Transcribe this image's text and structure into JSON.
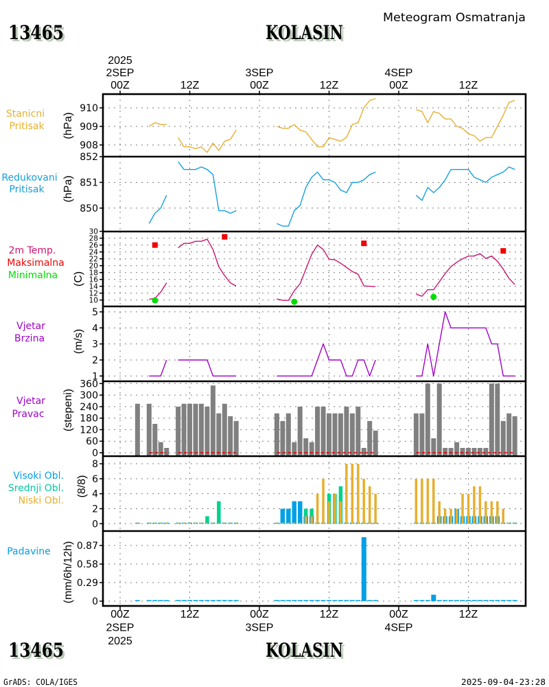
{
  "header": {
    "station_id": "13465",
    "station_name": "KOLASIN",
    "title": "Meteogram Osmatranja"
  },
  "footer": {
    "station_id": "13465",
    "station_name": "KOLASIN",
    "software": "GrADS: COLA/IGES",
    "timestamp": "2025-09-04-23:28"
  },
  "chart_data": {
    "type": "meteogram",
    "title": "Meteogram Osmatranja",
    "station": "13465 KOLASIN",
    "x_axis": {
      "reference": "2025 2SEP 00Z",
      "unit": "hours",
      "xlim": [
        -2.96,
        69.87
      ],
      "grid": true,
      "ticks": [
        {
          "hour": 0,
          "top": [
            "2025",
            "2SEP",
            "00Z"
          ],
          "bottom": [
            "00Z",
            "2SEP",
            "2025"
          ]
        },
        {
          "hour": 12,
          "top": [
            "12Z"
          ],
          "bottom": [
            "12Z"
          ]
        },
        {
          "hour": 24,
          "top": [
            "3SEP",
            "00Z"
          ],
          "bottom": [
            "00Z",
            "3SEP"
          ]
        },
        {
          "hour": 36,
          "top": [
            "12Z"
          ],
          "bottom": [
            "12Z"
          ]
        },
        {
          "hour": 48,
          "top": [
            "4SEP",
            "00Z"
          ],
          "bottom": [
            "00Z",
            "4SEP"
          ]
        },
        {
          "hour": 60,
          "top": [
            "12Z"
          ],
          "bottom": [
            "12Z"
          ]
        }
      ]
    },
    "hours": [
      3,
      5,
      6,
      7,
      8,
      10,
      11,
      12,
      13,
      14,
      15,
      16,
      17,
      18,
      19,
      20,
      27,
      28,
      29,
      30,
      31,
      32,
      33,
      34,
      35,
      36,
      37,
      38,
      39,
      40,
      41,
      42,
      43,
      44,
      51,
      52,
      53,
      54,
      55,
      56,
      57,
      58,
      59,
      60,
      61,
      62,
      63,
      64,
      65,
      66,
      67,
      68
    ],
    "panels": [
      {
        "id": "station-pressure",
        "labels": [
          {
            "text": "Stanicni",
            "color": "#e6af2e"
          },
          {
            "text": "Pritisak",
            "color": "#e6af2e"
          }
        ],
        "ylabel": "(hPa)",
        "ylim": [
          907.37,
          910.74
        ],
        "ticks": [
          908,
          909,
          910
        ],
        "tick_labels": [
          "908",
          "909",
          "910"
        ],
        "grid": true,
        "series": [
          {
            "id": "station-pressure",
            "name": "Stanicni Pritisak",
            "type": "line",
            "color": "#e6af2e",
            "values": [
              null,
              909.0,
              909.2,
              909.1,
              909.1,
              908.4,
              907.9,
              907.9,
              907.8,
              907.9,
              907.6,
              908.1,
              907.7,
              908.2,
              908.3,
              908.8,
              909.0,
              908.9,
              908.9,
              909.1,
              908.8,
              908.7,
              908.3,
              907.9,
              907.9,
              908.4,
              908.3,
              908.2,
              908.4,
              909.1,
              909.2,
              910.0,
              910.4,
              910.5,
              909.9,
              909.8,
              909.2,
              909.8,
              909.7,
              909.4,
              909.4,
              909.0,
              908.9,
              908.6,
              908.5,
              908.2,
              908.4,
              908.4,
              909.0,
              909.6,
              910.3,
              910.4
            ]
          }
        ]
      },
      {
        "id": "reduced-pressure",
        "labels": [
          {
            "text": "Redukovani",
            "color": "#14a0dc"
          },
          {
            "text": "Pritisak",
            "color": "#14a0dc"
          }
        ],
        "ylabel": "(hPa)",
        "ylim": [
          849.09,
          852.0
        ],
        "ticks": [
          850,
          851,
          852
        ],
        "tick_labels": [
          "850",
          "851",
          "852"
        ],
        "grid": true,
        "series": [
          {
            "id": "reduced-pressure",
            "name": "Redukovani Pritisak",
            "type": "line",
            "color": "#14a0dc",
            "values": [
              null,
              849.4,
              849.8,
              850.0,
              850.5,
              851.8,
              851.5,
              851.5,
              851.5,
              851.6,
              851.5,
              851.3,
              849.9,
              849.9,
              849.8,
              849.9,
              849.4,
              849.3,
              849.3,
              849.9,
              850.1,
              850.8,
              851.2,
              851.4,
              851.1,
              851.1,
              851.0,
              850.7,
              850.6,
              851.0,
              851.0,
              851.1,
              851.3,
              851.4,
              850.5,
              850.3,
              850.8,
              850.6,
              850.8,
              851.1,
              851.5,
              851.5,
              851.5,
              851.5,
              851.2,
              851.1,
              851.0,
              851.2,
              851.3,
              851.4,
              851.6,
              851.5
            ]
          }
        ]
      },
      {
        "id": "temperature",
        "labels": [
          {
            "text": "2m Temp.",
            "color": "#c8146e"
          },
          {
            "text": "Maksimalna",
            "color": "#f00000"
          },
          {
            "text": "Minimalna",
            "color": "#00dc00"
          }
        ],
        "ylabel": "(C)",
        "ylim": [
          8.14,
          29.94
        ],
        "ticks": [
          10,
          12,
          14,
          16,
          18,
          20,
          22,
          24,
          26,
          28,
          30
        ],
        "tick_labels": [
          "10",
          "12",
          "14",
          "16",
          "18",
          "20",
          "22",
          "24",
          "26",
          "28",
          "30"
        ],
        "grid": true,
        "series": [
          {
            "id": "temperature",
            "name": "2m Temp.",
            "type": "line",
            "color": "#c8146e",
            "values": [
              null,
              10.2,
              10.5,
              12.3,
              15.0,
              25.2,
              26.5,
              26.5,
              27.1,
              27.1,
              27.7,
              24.7,
              19.7,
              17.1,
              15.0,
              14.1,
              10.3,
              9.9,
              9.9,
              12.7,
              14.7,
              19.0,
              23.3,
              26.0,
              24.7,
              21.9,
              21.7,
              20.7,
              19.5,
              18.3,
              17.5,
              14.1,
              14.0,
              13.9,
              11.7,
              11.1,
              13.0,
              13.0,
              15.3,
              17.7,
              19.7,
              21.0,
              22.0,
              22.8,
              22.8,
              23.5,
              22.1,
              22.8,
              21.3,
              19.0,
              16.3,
              14.5
            ]
          },
          {
            "id": "max-temp",
            "name": "Maksimalna",
            "type": "square-marker",
            "color": "#f00000",
            "points": [
              {
                "hour": 6,
                "value": 26.0
              },
              {
                "hour": 18,
                "value": 28.4
              },
              {
                "hour": 42,
                "value": 26.5
              },
              {
                "hour": 66,
                "value": 24.3
              }
            ]
          },
          {
            "id": "min-temp",
            "name": "Minimalna",
            "type": "dot-marker",
            "color": "#00dc00",
            "points": [
              {
                "hour": 6,
                "value": 9.9
              },
              {
                "hour": 30,
                "value": 9.5
              },
              {
                "hour": 54,
                "value": 10.9
              }
            ]
          }
        ]
      },
      {
        "id": "wind-speed",
        "labels": [
          {
            "text": "Vjetar",
            "color": "#a000c8"
          },
          {
            "text": "Brzina",
            "color": "#a000c8"
          }
        ],
        "ylabel": "(m/s)",
        "ylim": [
          0.67,
          5.34
        ],
        "ticks": [
          1,
          2,
          3,
          4,
          5
        ],
        "tick_labels": [
          "1",
          "2",
          "3",
          "4",
          "5"
        ],
        "grid": true,
        "series": [
          {
            "id": "wind-speed",
            "name": "Vjetar Brzina",
            "type": "line",
            "color": "#a000c8",
            "values": [
              null,
              1,
              1,
              1,
              2,
              2,
              2,
              2,
              2,
              2,
              2,
              1,
              1,
              1,
              1,
              1,
              1,
              1,
              1,
              1,
              1,
              1,
              1,
              2,
              3,
              2,
              2,
              2,
              1,
              1,
              2,
              2,
              1,
              2,
              1,
              1,
              3,
              1,
              3,
              5,
              4,
              4,
              4,
              4,
              4,
              4,
              4,
              3,
              3,
              1,
              1,
              1
            ]
          }
        ]
      },
      {
        "id": "wind-direction",
        "labels": [
          {
            "text": "Vjetar",
            "color": "#a000c8"
          },
          {
            "text": "Pravac",
            "color": "#a000c8"
          }
        ],
        "ylabel": "(stepeni)",
        "ylim": [
          -17.9,
          371.8
        ],
        "ticks": [
          0,
          60,
          120,
          180,
          240,
          300,
          360
        ],
        "tick_labels": [
          "0",
          "60",
          "120",
          "180",
          "240",
          "300",
          "360"
        ],
        "grid": true,
        "series": [
          {
            "id": "wind-direction",
            "name": "Vjetar Pravac",
            "type": "bar",
            "bar_base": "axis-bottom",
            "color": "#808080",
            "values": [
              255,
              255,
              150,
              55,
              25,
              240,
              255,
              255,
              255,
              255,
              240,
              350,
              205,
              255,
              190,
              165,
              205,
              165,
              205,
              55,
              240,
              75,
              55,
              240,
              240,
              205,
              205,
              205,
              240,
              205,
              240,
              25,
              165,
              115,
              205,
              205,
              360,
              75,
              360,
              25,
              25,
              55,
              25,
              25,
              25,
              25,
              25,
              360,
              360,
              165,
              205,
              190
            ]
          },
          {
            "id": "zero-reference",
            "name": "",
            "type": "dashed-line",
            "color": "#dc0000",
            "values": [
              null,
              0,
              0,
              0,
              0,
              0,
              0,
              0,
              0,
              0,
              0,
              0,
              0,
              0,
              0,
              0,
              0,
              0,
              0,
              0,
              0,
              0,
              0,
              0,
              0,
              0,
              0,
              0,
              0,
              0,
              0,
              0,
              0,
              0,
              0,
              0,
              0,
              0,
              0,
              0,
              0,
              0,
              0,
              0,
              0,
              0,
              0,
              0,
              0,
              0,
              0,
              0
            ]
          }
        ]
      },
      {
        "id": "clouds",
        "labels": [
          {
            "text": "Visoki Obl.",
            "color": "#00a0e6"
          },
          {
            "text": "Srednji Obl.",
            "color": "#00c8a0"
          },
          {
            "text": "Niski Obl.",
            "color": "#e6af2e"
          }
        ],
        "ylabel": "(8/8)",
        "ylim": [
          -0.98,
          9.01
        ],
        "ticks": [
          0,
          2,
          4,
          6,
          8
        ],
        "tick_labels": [
          "0",
          "2",
          "4",
          "6",
          "8"
        ],
        "grid": true,
        "series": [
          {
            "id": "cloud-medium",
            "name": "Srednji Obl.",
            "type": "bar",
            "color": "#00d28c",
            "values": [
              0,
              0,
              0,
              0,
              0,
              0,
              0,
              0,
              0,
              0,
              1,
              0,
              3,
              0,
              0,
              0,
              0,
              0,
              0,
              0,
              0,
              2,
              2,
              0,
              0,
              4,
              4,
              5,
              0,
              0,
              0,
              0,
              0,
              0,
              0,
              0,
              0,
              0,
              0,
              0,
              0,
              0,
              0,
              1,
              0,
              0,
              0,
              0,
              0,
              0,
              0,
              0
            ]
          },
          {
            "id": "cloud-high",
            "name": "Visoki Obl.",
            "type": "bar",
            "color": "#00a0e6",
            "values": [
              0,
              0,
              0,
              0,
              0,
              0,
              0,
              0,
              0,
              0,
              0,
              0,
              0,
              0,
              0,
              0,
              0,
              2,
              2,
              3,
              3,
              1,
              1,
              0,
              0,
              0,
              0,
              0,
              0,
              0,
              0,
              0,
              0,
              0,
              0,
              0,
              0,
              0,
              1,
              1,
              1,
              2,
              1,
              1,
              1,
              1,
              1,
              1,
              1,
              0,
              0,
              0
            ]
          },
          {
            "id": "cloud-low",
            "name": "Niski Obl.",
            "type": "bar",
            "color": "#e6af2e",
            "values": [
              0,
              0,
              0,
              0,
              0,
              0,
              0,
              0,
              0,
              0,
              0,
              0,
              0,
              0,
              0,
              0,
              0,
              0,
              0,
              0,
              0,
              1,
              1,
              4,
              6,
              3,
              4,
              3,
              8,
              8,
              8,
              6,
              5,
              4,
              6,
              6,
              6,
              6,
              3,
              2,
              2,
              2,
              4,
              4,
              5,
              5,
              3,
              3,
              3,
              2,
              0,
              0
            ]
          }
        ]
      },
      {
        "id": "precipitation",
        "labels": [
          {
            "text": "Padavine",
            "color": "#00a0e6"
          }
        ],
        "ylabel": "(mm/6h/12h)",
        "ylim": [
          -0.075,
          1.096
        ],
        "ticks": [
          0,
          0.29,
          0.58,
          0.87
        ],
        "tick_labels": [
          "0",
          "0.29",
          "0.58",
          "0.87"
        ],
        "grid": true,
        "series": [
          {
            "id": "precipitation",
            "name": "Padavine",
            "type": "bar",
            "color": "#00a0e6",
            "values": [
              0,
              0,
              0,
              0,
              0,
              0,
              0,
              0,
              0,
              0,
              0,
              0,
              0,
              0,
              0,
              0,
              0,
              0,
              0,
              0,
              0,
              0,
              0,
              0,
              0,
              0,
              0,
              0,
              0,
              0,
              0,
              1.0,
              0,
              0,
              0,
              0,
              0,
              0.1,
              0,
              0,
              0,
              0,
              0,
              0,
              0,
              0,
              0,
              0,
              0,
              0,
              0,
              0
            ]
          }
        ]
      }
    ]
  }
}
